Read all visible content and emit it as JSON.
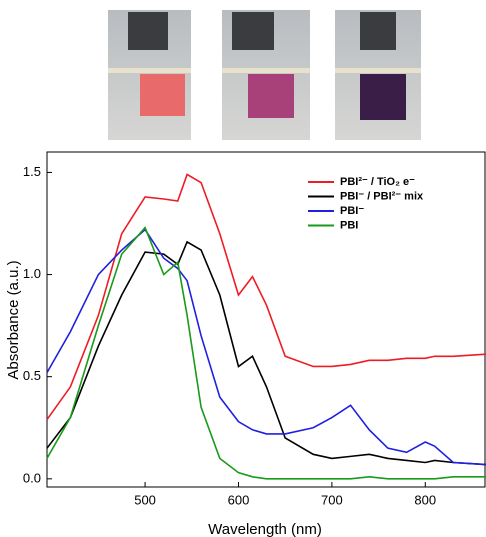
{
  "chart_data": {
    "type": "line",
    "xlabel": "Wavelength (nm)",
    "ylabel": "Absorbance (a.u.)",
    "x": [
      395,
      420,
      450,
      475,
      500,
      520,
      535,
      545,
      560,
      580,
      600,
      615,
      630,
      650,
      680,
      700,
      720,
      740,
      760,
      780,
      800,
      810,
      830,
      865
    ],
    "series": [
      {
        "name": "PBI²⁻ / TiO₂ e⁻",
        "color": "#ee1c24",
        "values": [
          0.29,
          0.45,
          0.8,
          1.2,
          1.38,
          1.37,
          1.36,
          1.49,
          1.45,
          1.2,
          0.9,
          0.99,
          0.85,
          0.6,
          0.55,
          0.55,
          0.56,
          0.58,
          0.58,
          0.59,
          0.59,
          0.6,
          0.6,
          0.61
        ]
      },
      {
        "name": "PBI⁻ / PBI²⁻ mix",
        "color": "#000000",
        "values": [
          0.15,
          0.3,
          0.65,
          0.9,
          1.11,
          1.1,
          1.05,
          1.16,
          1.12,
          0.9,
          0.55,
          0.6,
          0.45,
          0.2,
          0.12,
          0.1,
          0.11,
          0.12,
          0.1,
          0.09,
          0.08,
          0.09,
          0.08,
          0.07
        ]
      },
      {
        "name": "PBI⁻",
        "color": "#2020e0",
        "values": [
          0.52,
          0.72,
          1.0,
          1.12,
          1.22,
          1.08,
          1.03,
          0.97,
          0.7,
          0.4,
          0.28,
          0.24,
          0.22,
          0.22,
          0.25,
          0.3,
          0.36,
          0.24,
          0.15,
          0.13,
          0.18,
          0.16,
          0.08,
          0.07
        ]
      },
      {
        "name": "PBI",
        "color": "#1a9a1a",
        "values": [
          0.1,
          0.3,
          0.75,
          1.1,
          1.23,
          1.0,
          1.06,
          0.8,
          0.35,
          0.1,
          0.03,
          0.01,
          0.0,
          0.0,
          0.0,
          0.0,
          0.0,
          0.01,
          0.0,
          0.0,
          0.0,
          0.0,
          0.01,
          0.01
        ]
      }
    ],
    "xlim": [
      395,
      865
    ],
    "xticks": [
      500,
      600,
      700,
      800
    ],
    "ylim": [
      -0.04,
      1.6
    ],
    "yticks": [
      {
        "value": 0,
        "label": "0.0"
      },
      0.5,
      {
        "value": 1,
        "label": "1.0"
      },
      1.5
    ],
    "legend": "upper right"
  }
}
